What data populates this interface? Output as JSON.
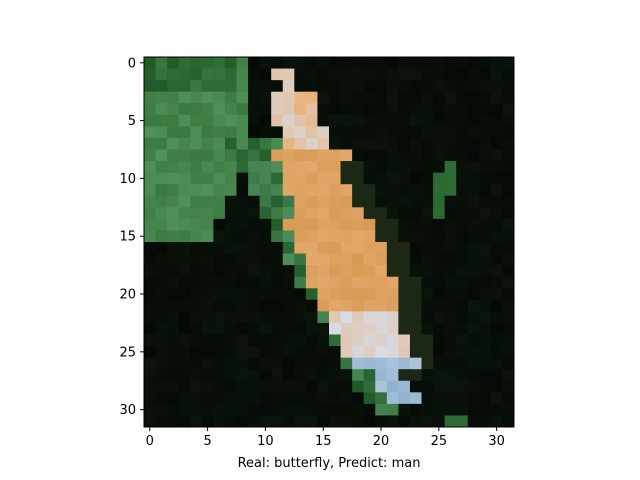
{
  "figure": {
    "xlabel": "Real: butterfly, Predict: man",
    "image_size": 32,
    "x_ticks": [
      0,
      5,
      10,
      15,
      20,
      25,
      30
    ],
    "y_ticks": [
      0,
      5,
      10,
      15,
      20,
      25,
      30
    ]
  },
  "image": {
    "background_color": "#060a06",
    "leaf_color": "#3a7a40",
    "leaf_dark_color": "#1f5a28",
    "leaf_light_color": "#5a9a66",
    "wing_orange_color": "#d99a55",
    "wing_light_color": "#e8b27a",
    "wing_white_color": "#d8dce8",
    "wing_blue_color": "#8fb2d0",
    "dark_edge_color": "#2a3a20"
  }
}
